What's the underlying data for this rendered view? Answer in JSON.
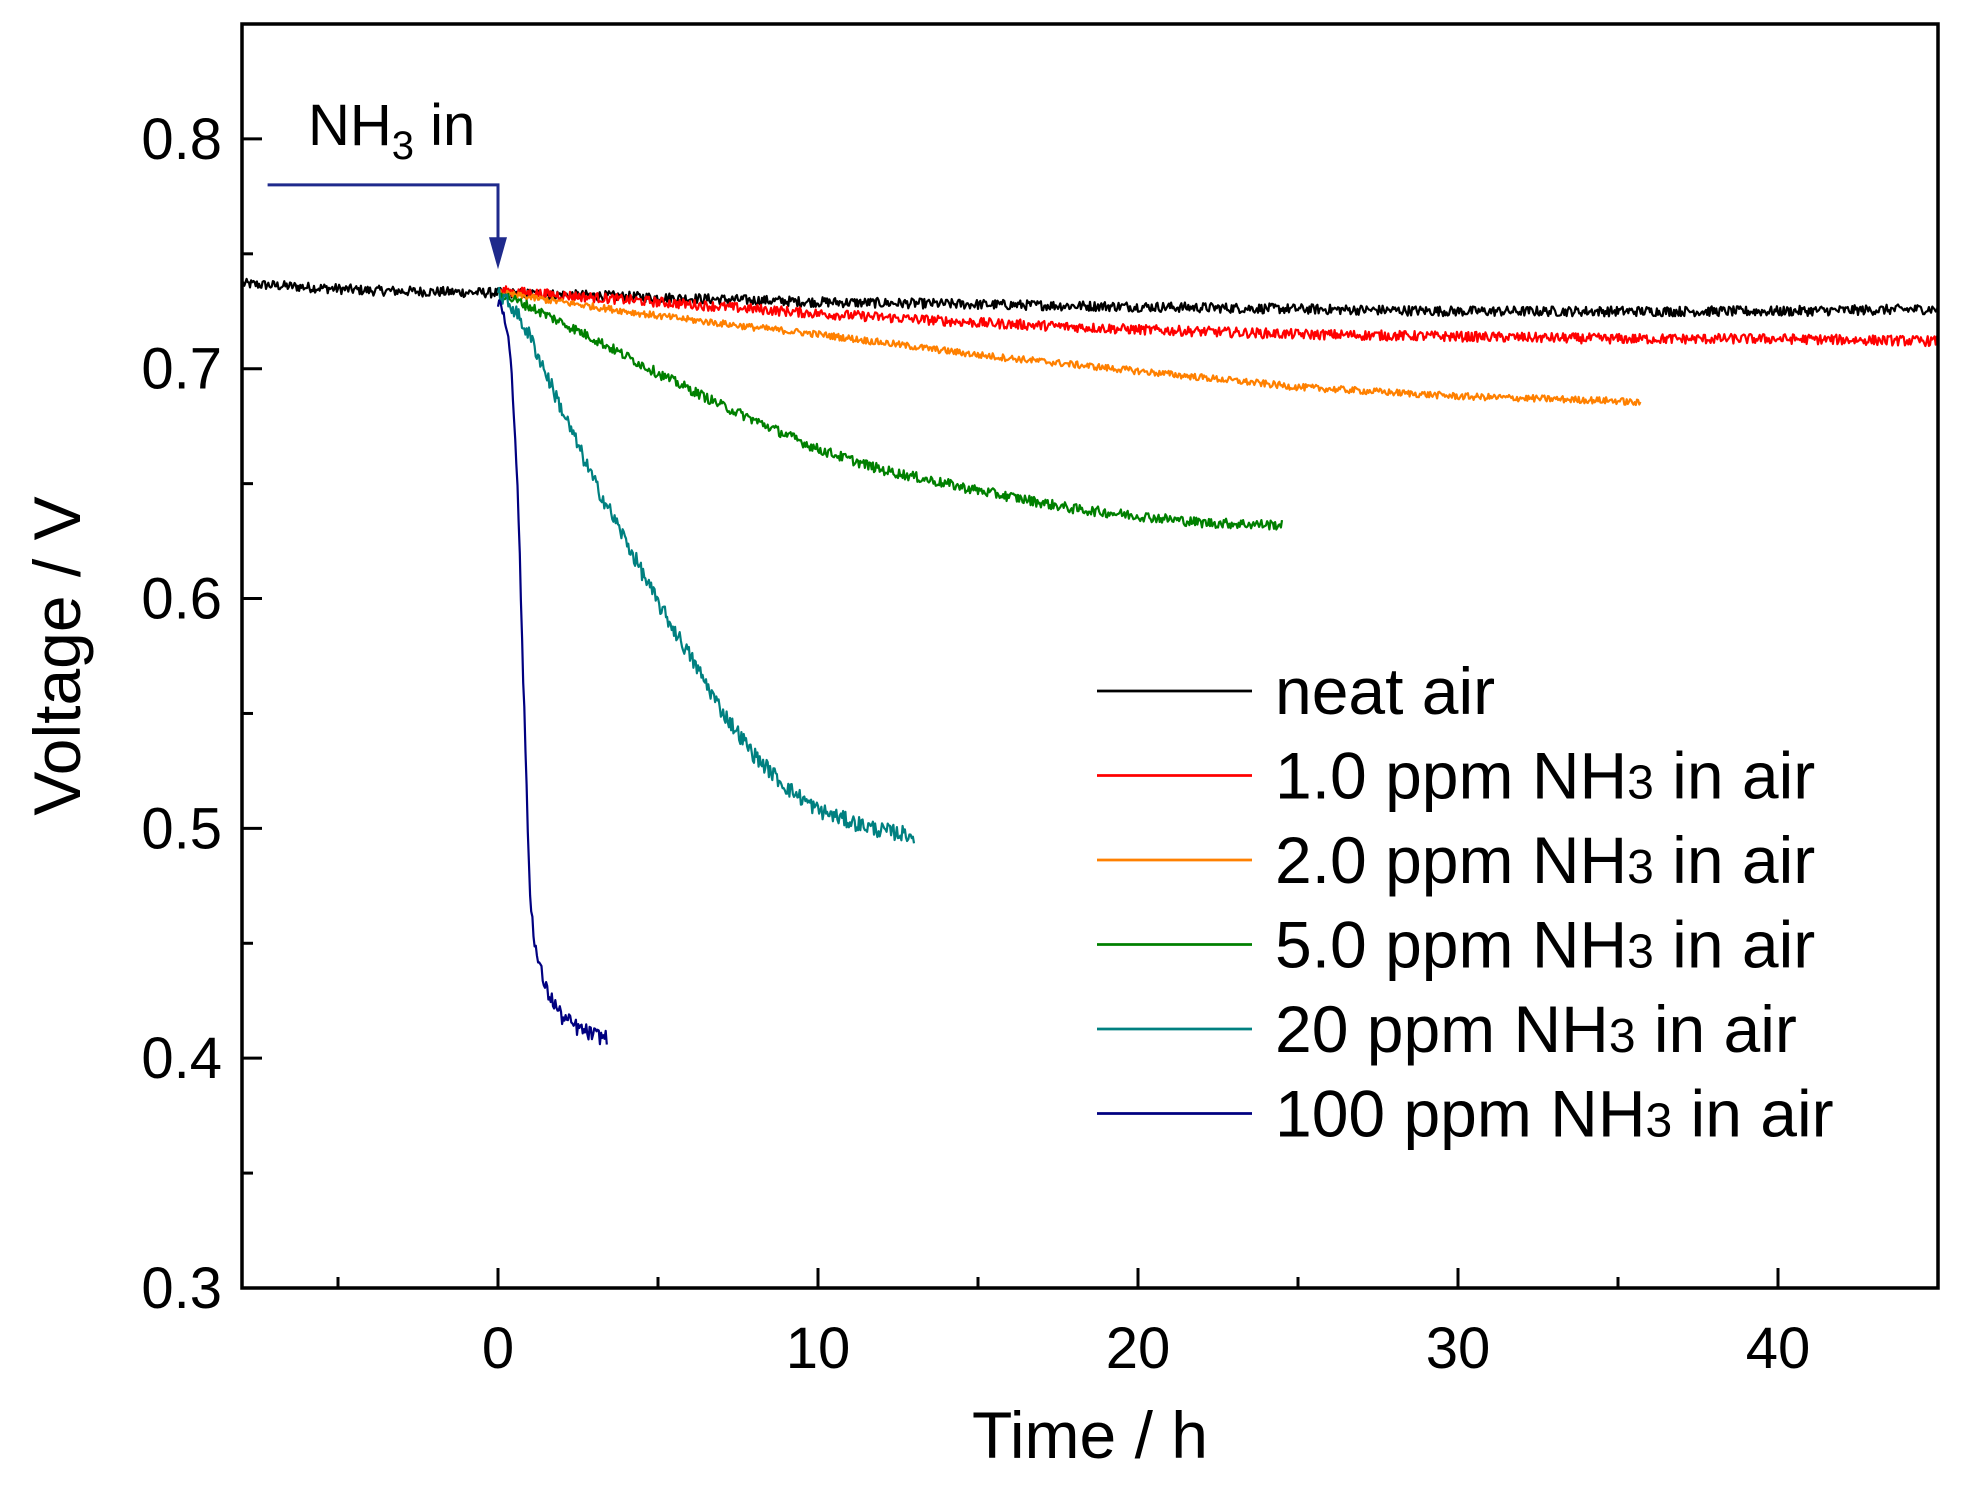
{
  "chart_data": {
    "type": "line",
    "title": "",
    "xlabel": "Time / h",
    "ylabel": "Voltage / V",
    "xlim": [
      -8,
      45
    ],
    "ylim": [
      0.3,
      0.85
    ],
    "x_ticks": [
      0,
      10,
      20,
      30,
      40
    ],
    "x_tick_labels": [
      "0",
      "10",
      "20",
      "30",
      "40"
    ],
    "y_ticks": [
      0.3,
      0.4,
      0.5,
      0.6,
      0.7,
      0.8
    ],
    "y_tick_labels": [
      "0.3",
      "0.4",
      "0.5",
      "0.6",
      "0.7",
      "0.8"
    ],
    "grid": false,
    "legend_position": "center-right",
    "annotation": {
      "text_main": "NH",
      "text_sub": "3",
      "text_tail": " in",
      "line_start_x": -7.2,
      "line_end_x": 0,
      "line_y": 0.78,
      "arrow_tip_y": 0.745,
      "color": "#1f2a8c"
    },
    "series": [
      {
        "name": "neat air",
        "legend_main": "neat air",
        "legend_sub": "",
        "legend_tail": "",
        "color": "#000000",
        "x": [
          -8,
          -4,
          0,
          5,
          10,
          15,
          20,
          25,
          30,
          35,
          40,
          45
        ],
        "y": [
          0.737,
          0.734,
          0.733,
          0.731,
          0.729,
          0.728,
          0.727,
          0.726,
          0.725,
          0.725,
          0.725,
          0.726
        ],
        "noise": 0.0022
      },
      {
        "name": "1.0 ppm NH3 in air",
        "legend_main": "1.0 ppm NH",
        "legend_sub": "3",
        "legend_tail": " in air",
        "color": "#ff0000",
        "x": [
          0,
          2,
          5,
          8,
          10,
          15,
          20,
          25,
          30,
          35,
          40,
          45
        ],
        "y": [
          0.734,
          0.732,
          0.729,
          0.726,
          0.724,
          0.72,
          0.717,
          0.715,
          0.714,
          0.713,
          0.713,
          0.712
        ],
        "noise": 0.0022
      },
      {
        "name": "2.0 ppm NH3 in air",
        "legend_main": "2.0 ppm NH",
        "legend_sub": "3",
        "legend_tail": " in air",
        "color": "#ff8000",
        "x": [
          0,
          2,
          5,
          8,
          10,
          15,
          20,
          25,
          30,
          35,
          35.7
        ],
        "y": [
          0.733,
          0.729,
          0.723,
          0.718,
          0.715,
          0.706,
          0.699,
          0.692,
          0.688,
          0.686,
          0.685
        ],
        "noise": 0.0015
      },
      {
        "name": "5.0 ppm NH3 in air",
        "legend_main": "5.0 ppm NH",
        "legend_sub": "3",
        "legend_tail": " in air",
        "color": "#008000",
        "x": [
          0,
          1,
          3,
          5,
          7,
          10,
          12,
          15,
          18,
          20,
          22,
          24.5
        ],
        "y": [
          0.733,
          0.727,
          0.713,
          0.698,
          0.684,
          0.665,
          0.656,
          0.647,
          0.639,
          0.636,
          0.633,
          0.632
        ],
        "noise": 0.0022
      },
      {
        "name": "20 ppm NH3 in air",
        "legend_main": "20 ppm NH",
        "legend_sub": "3",
        "legend_tail": " in air",
        "color": "#008080",
        "x": [
          0,
          0.5,
          1,
          2,
          3,
          4,
          5,
          6,
          7,
          8,
          9,
          10,
          11,
          12,
          13
        ],
        "y": [
          0.733,
          0.726,
          0.714,
          0.682,
          0.651,
          0.625,
          0.598,
          0.575,
          0.551,
          0.532,
          0.518,
          0.508,
          0.503,
          0.499,
          0.497
        ],
        "noise": 0.0035
      },
      {
        "name": "100 ppm NH3 in air",
        "legend_main": "100 ppm NH",
        "legend_sub": "3",
        "legend_tail": " in air",
        "color": "#000080",
        "x": [
          0,
          0.2,
          0.4,
          0.6,
          0.8,
          1.0,
          1.2,
          1.5,
          2.0,
          2.5,
          3.0,
          3.4
        ],
        "y": [
          0.727,
          0.724,
          0.705,
          0.655,
          0.56,
          0.47,
          0.445,
          0.43,
          0.418,
          0.413,
          0.41,
          0.409
        ],
        "noise": 0.0035
      }
    ]
  }
}
